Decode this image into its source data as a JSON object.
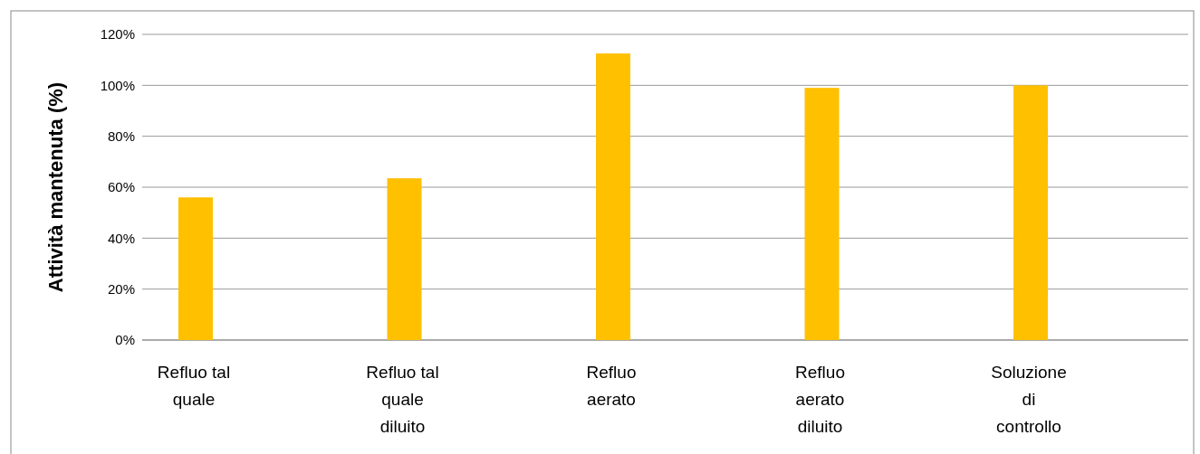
{
  "chart_data": {
    "type": "bar",
    "ylabel": "Attività mantenuta (%)",
    "categories": [
      "Refluo tal quale",
      "Refluo tal quale diluito",
      "Refluo aerato",
      "Refluo aerato diluito",
      "Soluzione di controllo"
    ],
    "values": [
      56,
      63.5,
      112.5,
      99,
      100
    ],
    "color": "#ffc000",
    "ylim": [
      0,
      120
    ],
    "yticks": [
      {
        "value": 0,
        "label": "0%"
      },
      {
        "value": 20,
        "label": "20%"
      },
      {
        "value": 40,
        "label": "40%"
      },
      {
        "value": 60,
        "label": "60%"
      },
      {
        "value": 80,
        "label": "80%"
      },
      {
        "value": 100,
        "label": "100%"
      },
      {
        "value": 120,
        "label": "120%"
      }
    ],
    "grid": "y"
  }
}
